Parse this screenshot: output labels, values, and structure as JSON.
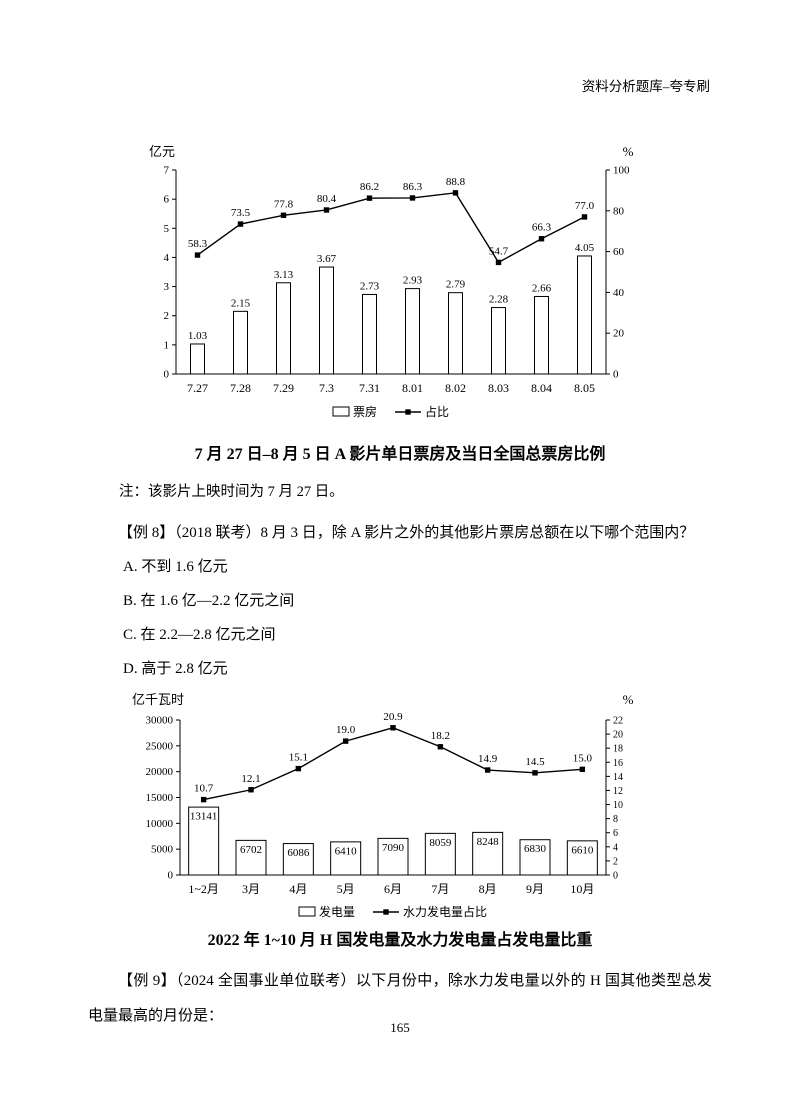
{
  "page": {
    "header": "资料分析题库–夸专刷",
    "page_number": "165"
  },
  "note": "注：该影片上映时间为 7 月 27 日。",
  "question8": {
    "stem": "【例 8】（2018 联考）8 月 3 日，除 A 影片之外的其他影片票房总额在以下哪个范围内？",
    "options": [
      "A. 不到 1.6 亿元",
      "B. 在 1.6 亿—2.2 亿元之间",
      "C. 在 2.2—2.8 亿元之间",
      "D. 高于 2.8 亿元"
    ]
  },
  "question9": {
    "stem": "【例 9】（2024 全国事业单位联考）以下月份中，除水力发电量以外的 H 国其他类型总发电量最高的月份是："
  },
  "chart_data": [
    {
      "type": "bar+line",
      "title": "7 月 27 日–8 月 5 日 A 影片单日票房及当日全国总票房比例",
      "categories": [
        "7.27",
        "7.28",
        "7.29",
        "7.3",
        "7.31",
        "8.01",
        "8.02",
        "8.03",
        "8.04",
        "8.05"
      ],
      "left_axis": {
        "label": "亿元",
        "min": 0,
        "max": 7,
        "step": 1
      },
      "right_axis": {
        "label": "%",
        "min": 0,
        "max": 100,
        "step": 20
      },
      "series": [
        {
          "name": "票房",
          "type": "bar",
          "axis": "left",
          "values": [
            1.03,
            2.15,
            3.13,
            3.67,
            2.73,
            2.93,
            2.79,
            2.28,
            2.66,
            4.05
          ],
          "labels": [
            "1.03",
            "2.15",
            "3.13",
            "3.67",
            "2.73",
            "2.93",
            "2.79",
            "2.28",
            "2.66",
            "4.05"
          ]
        },
        {
          "name": "占比",
          "type": "line",
          "axis": "right",
          "values": [
            58.3,
            73.5,
            77.8,
            80.4,
            86.2,
            86.3,
            88.8,
            54.7,
            66.3,
            77.0
          ],
          "labels": [
            "58.3",
            "73.5",
            "77.8",
            "80.4",
            "86.2",
            "86.3",
            "88.8",
            "54.7",
            "66.3",
            "77.0"
          ]
        }
      ],
      "legend_position": "bottom",
      "grid": "off"
    },
    {
      "type": "bar+line",
      "title": "2022 年 1~10 月 H 国发电量及水力发电量占发电量比重",
      "categories": [
        "1~2月",
        "3月",
        "4月",
        "5月",
        "6月",
        "7月",
        "8月",
        "9月",
        "10月"
      ],
      "left_axis": {
        "label": "亿千瓦时",
        "min": 0,
        "max": 30000,
        "step": 5000
      },
      "right_axis": {
        "label": "%",
        "min": 0,
        "max": 22,
        "step": 2
      },
      "series": [
        {
          "name": "发电量",
          "type": "bar",
          "axis": "left",
          "values": [
            13141,
            6702,
            6086,
            6410,
            7090,
            8059,
            8248,
            6830,
            6610
          ],
          "labels": [
            "13141",
            "6702",
            "6086",
            "6410",
            "7090",
            "8059",
            "8248",
            "6830",
            "6610"
          ]
        },
        {
          "name": "水力发电量占比",
          "type": "line",
          "axis": "right",
          "values": [
            10.7,
            12.1,
            15.1,
            19.0,
            20.9,
            18.2,
            14.9,
            14.5,
            15.0
          ],
          "labels": [
            "10.7",
            "12.1",
            "15.1",
            "19.0",
            "20.9",
            "18.2",
            "14.9",
            "14.5",
            "15.0"
          ]
        }
      ],
      "legend_position": "bottom",
      "grid": "off"
    }
  ]
}
